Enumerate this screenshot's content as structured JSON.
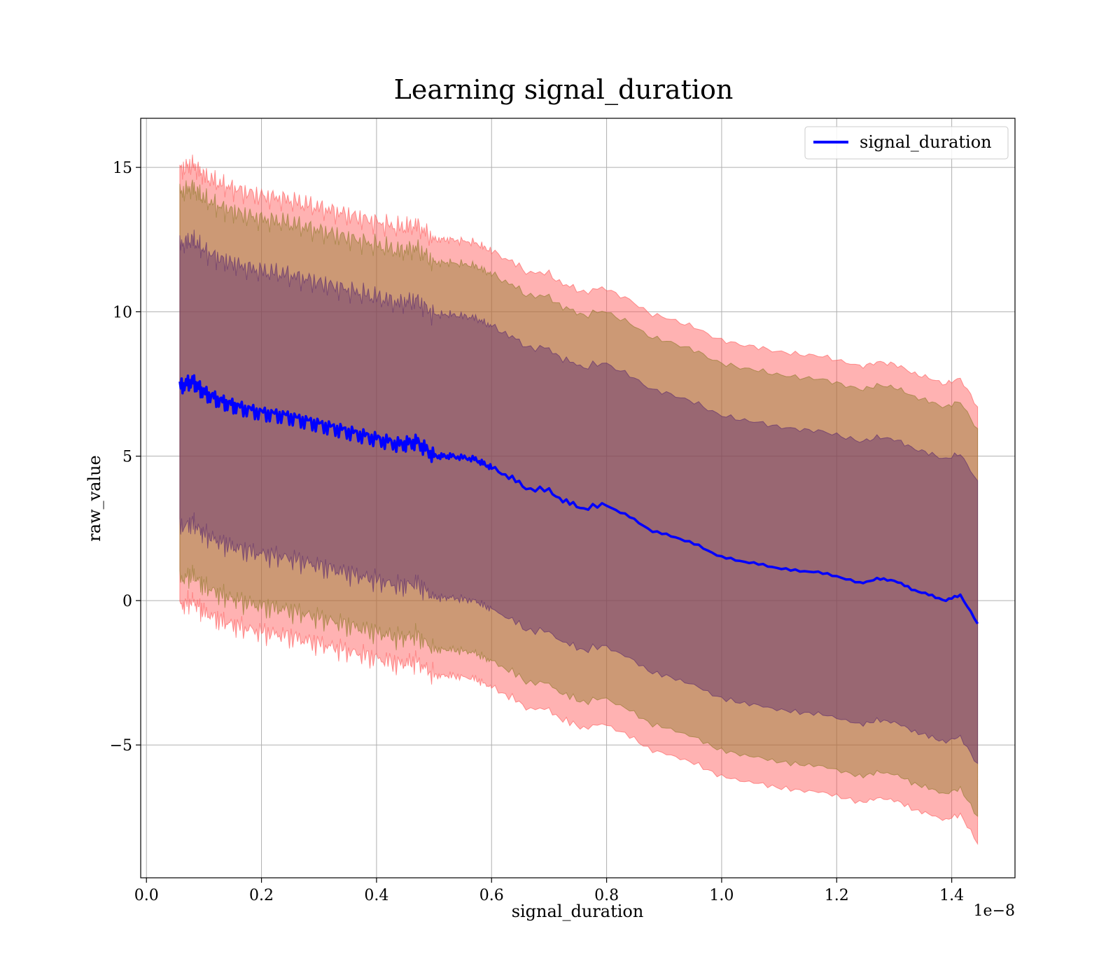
{
  "chart_data": {
    "type": "line",
    "title": "Learning signal_duration",
    "xlabel": "signal_duration",
    "ylabel": "raw_value",
    "x_offset_text": "1e−8",
    "xlim": [
      -0.01,
      1.51
    ],
    "ylim": [
      -9.6,
      16.7
    ],
    "grid": true,
    "legend_position": "top-right",
    "x_ticks": [
      0.0,
      0.2,
      0.4,
      0.6,
      0.8,
      1.0,
      1.2,
      1.4
    ],
    "x_tick_labels": [
      "0.0",
      "0.2",
      "0.4",
      "0.6",
      "0.8",
      "1.0",
      "1.2",
      "1.4"
    ],
    "y_ticks": [
      -5,
      0,
      5,
      10,
      15
    ],
    "y_tick_labels": [
      "−5",
      "0",
      "5",
      "10",
      "15"
    ],
    "colors": {
      "line": "#0000ff",
      "band_outer": "#ff5555",
      "band_middle": "#8f7a2a",
      "band_inner": "#5a2a6e"
    },
    "series": [
      {
        "name": "signal_duration",
        "x": [
          0.058,
          0.08,
          0.1,
          0.13,
          0.16,
          0.2,
          0.24,
          0.28,
          0.32,
          0.36,
          0.4,
          0.44,
          0.47,
          0.5,
          0.53,
          0.57,
          0.6,
          0.63,
          0.66,
          0.7,
          0.73,
          0.76,
          0.8,
          0.84,
          0.88,
          0.92,
          0.96,
          1.0,
          1.04,
          1.08,
          1.12,
          1.16,
          1.2,
          1.24,
          1.27,
          1.3,
          1.33,
          1.36,
          1.39,
          1.415,
          1.445
        ],
        "values": [
          7.4,
          7.6,
          7.2,
          6.9,
          6.7,
          6.5,
          6.4,
          6.2,
          6.0,
          5.8,
          5.6,
          5.4,
          5.5,
          5.0,
          5.0,
          4.9,
          4.6,
          4.3,
          3.9,
          3.8,
          3.4,
          3.2,
          3.3,
          2.9,
          2.4,
          2.2,
          1.9,
          1.5,
          1.35,
          1.2,
          1.05,
          1.0,
          0.85,
          0.6,
          0.75,
          0.7,
          0.4,
          0.2,
          0.0,
          0.2,
          -0.8
        ]
      }
    ],
    "bands": [
      {
        "label": "outer",
        "upper_offset": 7.5,
        "lower_offset": -7.6
      },
      {
        "label": "middle",
        "upper_offset": 6.7,
        "lower_offset": -6.7
      },
      {
        "label": "inner",
        "upper_offset": 4.9,
        "lower_offset": -4.9
      }
    ]
  }
}
